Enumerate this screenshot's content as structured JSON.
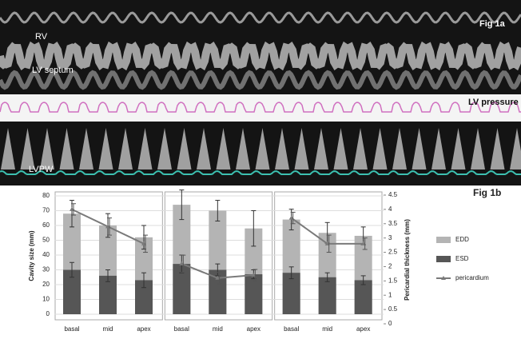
{
  "image_labels": {
    "fig": "Fig 1a",
    "rv": "RV",
    "septum": "LV septum",
    "pressure": "LV pressure",
    "lvpw": "LVPW"
  },
  "chart_data": {
    "type": "bar",
    "title": "Fig 1b",
    "y_label": "Cavity size (mm)",
    "y2_label": "Pericardial thickness (mm)",
    "categories": [
      "basal",
      "mid",
      "apex",
      "basal",
      "mid",
      "apex",
      "basal",
      "mid",
      "apex"
    ],
    "series": [
      {
        "name": "EDD",
        "color": "#b4b4b4",
        "values": [
          68,
          60,
          52,
          74,
          70,
          58,
          64,
          55,
          53
        ],
        "errors": [
          9,
          8,
          8,
          10,
          7,
          12,
          7,
          7,
          6
        ]
      },
      {
        "name": "ESD",
        "color": "#565656",
        "values": [
          30,
          26,
          23,
          34,
          30,
          27,
          28,
          25,
          23
        ],
        "errors": [
          5,
          4,
          5,
          6,
          4,
          3,
          4,
          3,
          3
        ]
      },
      {
        "name": "pericardium",
        "color": "#7a7a7a",
        "axis": "y2",
        "values": [
          4.0,
          3.4,
          2.8,
          2.1,
          1.6,
          1.7,
          3.7,
          2.8,
          2.8
        ],
        "errors": [
          0.2,
          0.3,
          0.3,
          0.3,
          0.2,
          0.2,
          0.2,
          0.3,
          0.2
        ]
      }
    ],
    "ylim": [
      0,
      80
    ],
    "yticks": [
      0,
      10,
      20,
      30,
      40,
      50,
      60,
      70,
      80
    ],
    "y2lim": [
      0,
      4.5
    ],
    "y2ticks": [
      0,
      0.5,
      1,
      1.5,
      2,
      2.5,
      3,
      3.5,
      4,
      4.5
    ],
    "grid": true,
    "legend": "right"
  }
}
